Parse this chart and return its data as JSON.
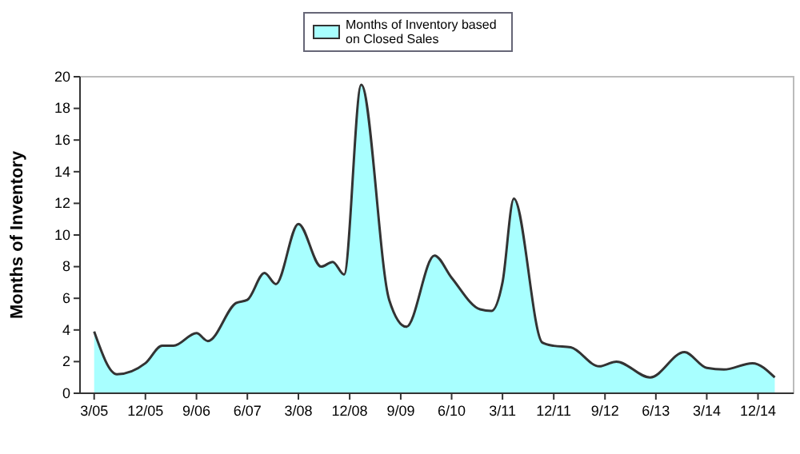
{
  "chart_data": {
    "type": "area",
    "ylabel": "Months of Inventory",
    "legend": "top",
    "x": [
      "2005-03",
      "2005-07",
      "2005-12",
      "2006-03",
      "2006-05",
      "2006-09",
      "2006-11",
      "2007-04",
      "2007-06",
      "2007-09",
      "2007-11",
      "2008-03",
      "2008-07",
      "2008-09",
      "2008-11",
      "2009-02",
      "2009-07",
      "2009-10",
      "2010-03",
      "2010-06",
      "2010-11",
      "2011-01",
      "2011-03",
      "2011-05",
      "2011-10",
      "2011-12",
      "2012-03",
      "2012-08",
      "2012-11",
      "2013-05",
      "2013-11",
      "2014-03",
      "2014-06",
      "2014-11",
      "2015-03"
    ],
    "series": [
      {
        "name": "Months of Inventory based on Closed Sales",
        "color": "#a8ffff",
        "values": [
          3.9,
          1.2,
          1.9,
          3.0,
          3.0,
          3.8,
          3.3,
          5.7,
          5.9,
          7.6,
          6.9,
          10.7,
          8.0,
          8.3,
          7.5,
          19.5,
          5.9,
          4.2,
          8.7,
          7.3,
          5.3,
          5.2,
          7.0,
          12.3,
          3.2,
          3.0,
          2.9,
          1.7,
          2.0,
          1.0,
          2.6,
          1.6,
          1.5,
          1.9,
          1.0
        ]
      }
    ],
    "xlim": [
      "2004-12-15",
      "2015-06-10"
    ],
    "xticks": [
      {
        "value": "2005-03",
        "label": "3/05"
      },
      {
        "value": "2005-12",
        "label": "12/05"
      },
      {
        "value": "2006-09",
        "label": "9/06"
      },
      {
        "value": "2007-06",
        "label": "6/07"
      },
      {
        "value": "2008-03",
        "label": "3/08"
      },
      {
        "value": "2008-12",
        "label": "12/08"
      },
      {
        "value": "2009-09",
        "label": "9/09"
      },
      {
        "value": "2010-06",
        "label": "6/10"
      },
      {
        "value": "2011-03",
        "label": "3/11"
      },
      {
        "value": "2011-12",
        "label": "12/11"
      },
      {
        "value": "2012-09",
        "label": "9/12"
      },
      {
        "value": "2013-06",
        "label": "6/13"
      },
      {
        "value": "2014-03",
        "label": "3/14"
      },
      {
        "value": "2014-12",
        "label": "12/14"
      }
    ],
    "ylim": [
      0,
      20
    ],
    "yticks": [
      0,
      2,
      4,
      6,
      8,
      10,
      12,
      14,
      16,
      18,
      20
    ],
    "grid": false
  }
}
